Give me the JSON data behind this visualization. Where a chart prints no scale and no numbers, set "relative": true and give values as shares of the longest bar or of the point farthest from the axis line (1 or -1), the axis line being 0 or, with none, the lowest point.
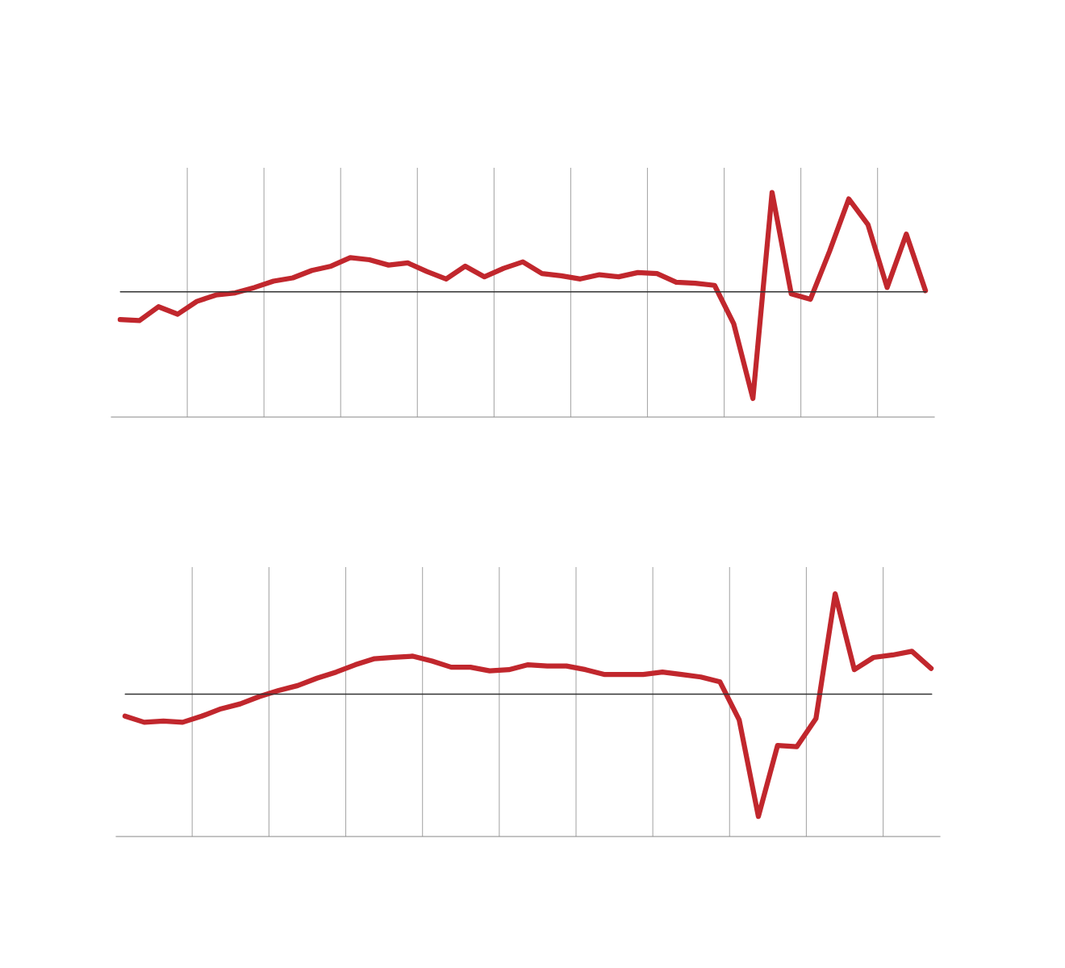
{
  "chart_data": [
    {
      "type": "line",
      "relative": true,
      "grid": "x",
      "categories": [
        null,
        null,
        null,
        null,
        null,
        null,
        null,
        null,
        null,
        null,
        null,
        null,
        null,
        null,
        null,
        null,
        null,
        null,
        null,
        null,
        null,
        null,
        null,
        null,
        null,
        null,
        null,
        null,
        null,
        null,
        null,
        null,
        null,
        null,
        null,
        null,
        null,
        null,
        null,
        null,
        null,
        null,
        null
      ],
      "series": [
        {
          "color": "#c1272d",
          "values": [
            -0.26,
            -0.27,
            -0.14,
            -0.21,
            -0.09,
            -0.03,
            -0.01,
            0.04,
            0.1,
            0.13,
            0.2,
            0.24,
            0.32,
            0.3,
            0.25,
            0.27,
            0.19,
            0.12,
            0.24,
            0.14,
            0.22,
            0.28,
            0.17,
            0.15,
            0.12,
            0.16,
            0.14,
            0.18,
            0.17,
            0.09,
            0.08,
            0.06,
            -0.3,
            -1,
            0.93,
            -0.02,
            -0.07,
            0.38,
            0.87,
            0.63,
            0.04,
            0.54,
            0.01
          ]
        }
      ]
    },
    {
      "type": "line",
      "relative": true,
      "grid": "x",
      "categories": [
        null,
        null,
        null,
        null,
        null,
        null,
        null,
        null,
        null,
        null,
        null,
        null,
        null,
        null,
        null,
        null,
        null,
        null,
        null,
        null,
        null,
        null,
        null,
        null,
        null,
        null,
        null,
        null,
        null,
        null,
        null,
        null,
        null,
        null,
        null,
        null,
        null,
        null,
        null,
        null,
        null,
        null,
        null
      ],
      "series": [
        {
          "color": "#c1272d",
          "values": [
            -0.18,
            -0.23,
            -0.22,
            -0.23,
            -0.18,
            -0.12,
            -0.08,
            -0.02,
            0.03,
            0.07,
            0.13,
            0.18,
            0.24,
            0.29,
            0.3,
            0.31,
            0.27,
            0.22,
            0.22,
            0.19,
            0.2,
            0.24,
            0.23,
            0.23,
            0.2,
            0.16,
            0.16,
            0.16,
            0.18,
            0.16,
            0.14,
            0.1,
            -0.21,
            -1,
            -0.42,
            -0.43,
            -0.2,
            0.82,
            0.2,
            0.3,
            0.32,
            0.35,
            0.21
          ]
        }
      ]
    }
  ]
}
